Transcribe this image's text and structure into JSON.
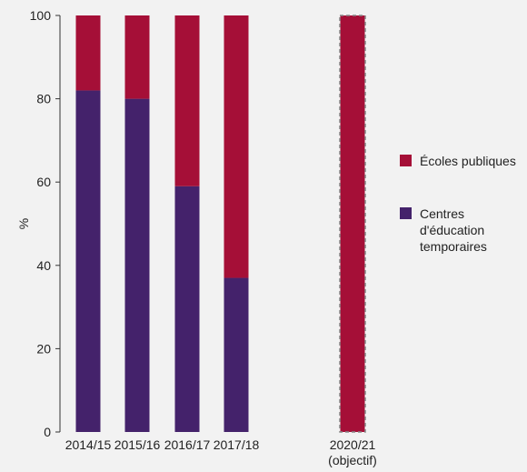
{
  "chart_data": {
    "type": "bar",
    "stacked": true,
    "ylabel": "%",
    "ylim": [
      0,
      100
    ],
    "yticks": [
      0,
      20,
      40,
      60,
      80,
      100
    ],
    "grid": false,
    "legend_position": "right",
    "categories": [
      {
        "label": "2014/15",
        "label_line2": ""
      },
      {
        "label": "2015/16",
        "label_line2": ""
      },
      {
        "label": "2016/17",
        "label_line2": ""
      },
      {
        "label": "2017/18",
        "label_line2": ""
      },
      {
        "label": "2020/21",
        "label_line2": "(objectif)"
      }
    ],
    "series": [
      {
        "name": "Centres d'éducation temporaires",
        "color": "#44226b",
        "legend_lines": [
          "Centres",
          "d'éducation",
          "temporaires"
        ],
        "values": [
          82,
          80,
          59,
          37,
          0
        ]
      },
      {
        "name": "Écoles publiques",
        "color": "#a50f37",
        "legend_lines": [
          "Écoles publiques"
        ],
        "values": [
          18,
          20,
          41,
          63,
          100
        ]
      }
    ],
    "target_category_index": 4,
    "target_outline_color": "#888888"
  }
}
